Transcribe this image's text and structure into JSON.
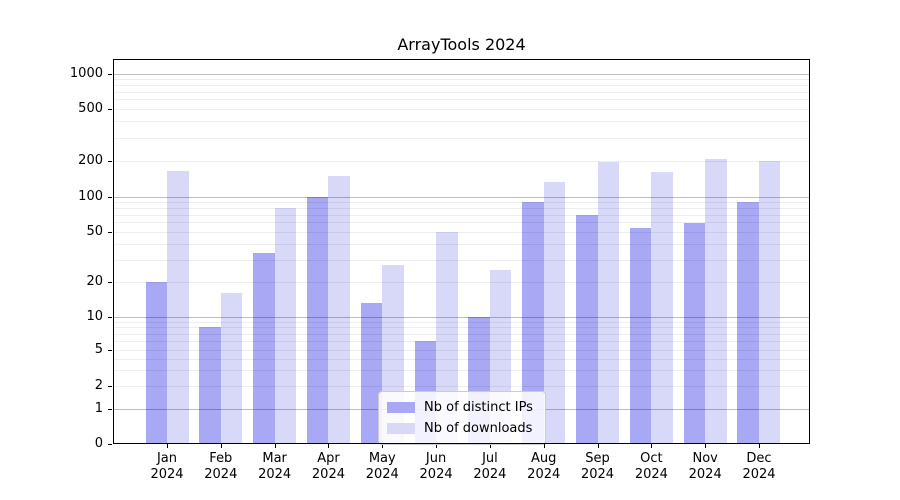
{
  "chart_data": {
    "type": "bar",
    "title": "ArrayTools 2024",
    "categories": [
      "Jan",
      "Feb",
      "Mar",
      "Apr",
      "May",
      "Jun",
      "Jul",
      "Aug",
      "Sep",
      "Oct",
      "Nov",
      "Dec"
    ],
    "category_year": "2024",
    "series": [
      {
        "name": "Nb of distinct IPs",
        "color": "#a8a8f5",
        "values": [
          20,
          8,
          34,
          100,
          13,
          6,
          10,
          90,
          70,
          54,
          59,
          90
        ]
      },
      {
        "name": "Nb of downloads",
        "color": "#d8d8f9",
        "values": [
          165,
          16,
          80,
          150,
          27,
          50,
          25,
          132,
          197,
          160,
          207,
          201
        ]
      }
    ],
    "yaxis": {
      "ticks": [
        0,
        1,
        2,
        5,
        10,
        20,
        50,
        100,
        200,
        500,
        1000
      ],
      "scale": "log (1-2-5 labeled ticks, linear below 1)",
      "ylim": [
        0,
        1200
      ]
    },
    "xlabel": "",
    "ylabel": "",
    "grid": "horizontal major (powers of 10, gray) + minor (light gray) lines",
    "legend_position": "inside lower-center"
  }
}
